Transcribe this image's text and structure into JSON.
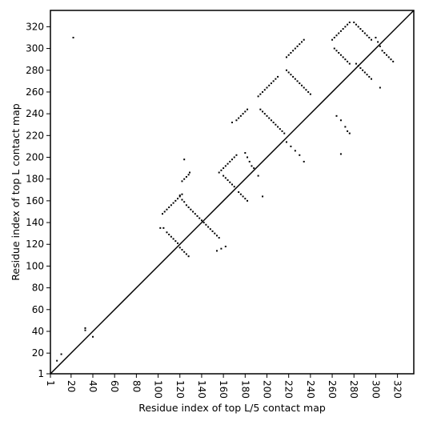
{
  "chart_data": {
    "type": "scatter",
    "title": "",
    "xlabel": "Residue index of top L/5 contact map",
    "ylabel": "Residue index of top L contact map",
    "xlim": [
      1,
      335
    ],
    "ylim": [
      1,
      335
    ],
    "xticks": [
      1,
      20,
      40,
      60,
      80,
      100,
      120,
      140,
      160,
      180,
      200,
      220,
      240,
      260,
      280,
      300,
      320
    ],
    "yticks": [
      1,
      20,
      40,
      60,
      80,
      100,
      120,
      140,
      160,
      180,
      200,
      220,
      240,
      260,
      280,
      300,
      320
    ],
    "x_tick_rotation": -90,
    "grid": false,
    "legend": "none",
    "marker": "small black square",
    "colors": {
      "marker": "#000000",
      "diagonal": "#000000"
    },
    "diagonal_line": [
      [
        1,
        1
      ],
      [
        335,
        335
      ]
    ],
    "series": [
      {
        "values": [
          [
            22,
            310
          ],
          [
            7,
            13
          ],
          [
            11,
            19
          ],
          [
            33,
            43
          ],
          [
            33,
            41
          ],
          [
            40,
            35
          ],
          [
            102,
            135
          ],
          [
            105,
            135
          ],
          [
            108,
            131
          ],
          [
            110,
            129
          ],
          [
            112,
            127
          ],
          [
            114,
            125
          ],
          [
            116,
            123
          ],
          [
            118,
            121
          ],
          [
            104,
            148
          ],
          [
            106,
            150
          ],
          [
            108,
            152
          ],
          [
            110,
            154
          ],
          [
            112,
            156
          ],
          [
            114,
            158
          ],
          [
            116,
            160
          ],
          [
            118,
            162
          ],
          [
            120,
            164
          ],
          [
            122,
            166
          ],
          [
            120,
            117
          ],
          [
            122,
            115
          ],
          [
            124,
            113
          ],
          [
            126,
            111
          ],
          [
            128,
            109
          ],
          [
            122,
            178
          ],
          [
            124,
            180
          ],
          [
            126,
            182
          ],
          [
            128,
            184
          ],
          [
            129,
            186
          ],
          [
            124,
            198
          ],
          [
            120,
            165
          ],
          [
            122,
            161
          ],
          [
            124,
            159
          ],
          [
            126,
            156
          ],
          [
            128,
            154
          ],
          [
            130,
            152
          ],
          [
            132,
            150
          ],
          [
            134,
            148
          ],
          [
            136,
            146
          ],
          [
            138,
            144
          ],
          [
            140,
            142
          ],
          [
            142,
            140
          ],
          [
            144,
            138
          ],
          [
            146,
            136
          ],
          [
            148,
            134
          ],
          [
            150,
            132
          ],
          [
            154,
            114
          ],
          [
            158,
            116
          ],
          [
            162,
            118
          ],
          [
            152,
            130
          ],
          [
            154,
            128
          ],
          [
            156,
            126
          ],
          [
            156,
            186
          ],
          [
            158,
            188
          ],
          [
            160,
            190
          ],
          [
            162,
            192
          ],
          [
            164,
            194
          ],
          [
            166,
            196
          ],
          [
            168,
            198
          ],
          [
            170,
            200
          ],
          [
            172,
            202
          ],
          [
            160,
            183
          ],
          [
            162,
            181
          ],
          [
            164,
            179
          ],
          [
            166,
            177
          ],
          [
            168,
            175
          ],
          [
            170,
            173
          ],
          [
            174,
            168
          ],
          [
            176,
            166
          ],
          [
            178,
            164
          ],
          [
            180,
            162
          ],
          [
            182,
            160
          ],
          [
            168,
            232
          ],
          [
            172,
            234
          ],
          [
            174,
            236
          ],
          [
            176,
            238
          ],
          [
            178,
            240
          ],
          [
            180,
            242
          ],
          [
            182,
            244
          ],
          [
            180,
            204
          ],
          [
            182,
            200
          ],
          [
            184,
            196
          ],
          [
            186,
            192
          ],
          [
            188,
            190
          ],
          [
            192,
            183
          ],
          [
            196,
            164
          ],
          [
            192,
            256
          ],
          [
            194,
            258
          ],
          [
            196,
            260
          ],
          [
            198,
            262
          ],
          [
            200,
            264
          ],
          [
            202,
            266
          ],
          [
            204,
            268
          ],
          [
            206,
            270
          ],
          [
            208,
            272
          ],
          [
            210,
            274
          ],
          [
            194,
            244
          ],
          [
            196,
            242
          ],
          [
            198,
            240
          ],
          [
            200,
            238
          ],
          [
            202,
            236
          ],
          [
            204,
            234
          ],
          [
            206,
            232
          ],
          [
            208,
            230
          ],
          [
            210,
            228
          ],
          [
            212,
            226
          ],
          [
            214,
            224
          ],
          [
            216,
            222
          ],
          [
            218,
            292
          ],
          [
            220,
            294
          ],
          [
            222,
            296
          ],
          [
            224,
            298
          ],
          [
            226,
            300
          ],
          [
            228,
            302
          ],
          [
            230,
            304
          ],
          [
            232,
            306
          ],
          [
            234,
            308
          ],
          [
            218,
            280
          ],
          [
            220,
            278
          ],
          [
            222,
            276
          ],
          [
            224,
            274
          ],
          [
            226,
            272
          ],
          [
            228,
            270
          ],
          [
            230,
            268
          ],
          [
            232,
            266
          ],
          [
            234,
            264
          ],
          [
            236,
            262
          ],
          [
            238,
            260
          ],
          [
            240,
            258
          ],
          [
            218,
            214
          ],
          [
            222,
            210
          ],
          [
            226,
            206
          ],
          [
            230,
            202
          ],
          [
            234,
            196
          ],
          [
            260,
            308
          ],
          [
            262,
            310
          ],
          [
            264,
            312
          ],
          [
            266,
            314
          ],
          [
            268,
            316
          ],
          [
            270,
            318
          ],
          [
            272,
            320
          ],
          [
            274,
            322
          ],
          [
            276,
            324
          ],
          [
            262,
            300
          ],
          [
            264,
            298
          ],
          [
            266,
            296
          ],
          [
            268,
            294
          ],
          [
            270,
            292
          ],
          [
            272,
            290
          ],
          [
            274,
            288
          ],
          [
            276,
            286
          ],
          [
            264,
            238
          ],
          [
            268,
            234
          ],
          [
            272,
            228
          ],
          [
            274,
            224
          ],
          [
            276,
            222
          ],
          [
            268,
            203
          ],
          [
            280,
            324
          ],
          [
            282,
            322
          ],
          [
            284,
            320
          ],
          [
            286,
            318
          ],
          [
            288,
            316
          ],
          [
            290,
            314
          ],
          [
            292,
            312
          ],
          [
            294,
            310
          ],
          [
            296,
            308
          ],
          [
            282,
            286
          ],
          [
            284,
            284
          ],
          [
            286,
            282
          ],
          [
            288,
            280
          ],
          [
            290,
            278
          ],
          [
            292,
            276
          ],
          [
            294,
            274
          ],
          [
            296,
            272
          ],
          [
            300,
            310
          ],
          [
            302,
            306
          ],
          [
            304,
            302
          ],
          [
            306,
            298
          ],
          [
            308,
            296
          ],
          [
            310,
            294
          ],
          [
            312,
            292
          ],
          [
            314,
            290
          ],
          [
            316,
            288
          ],
          [
            304,
            264
          ]
        ]
      }
    ]
  }
}
